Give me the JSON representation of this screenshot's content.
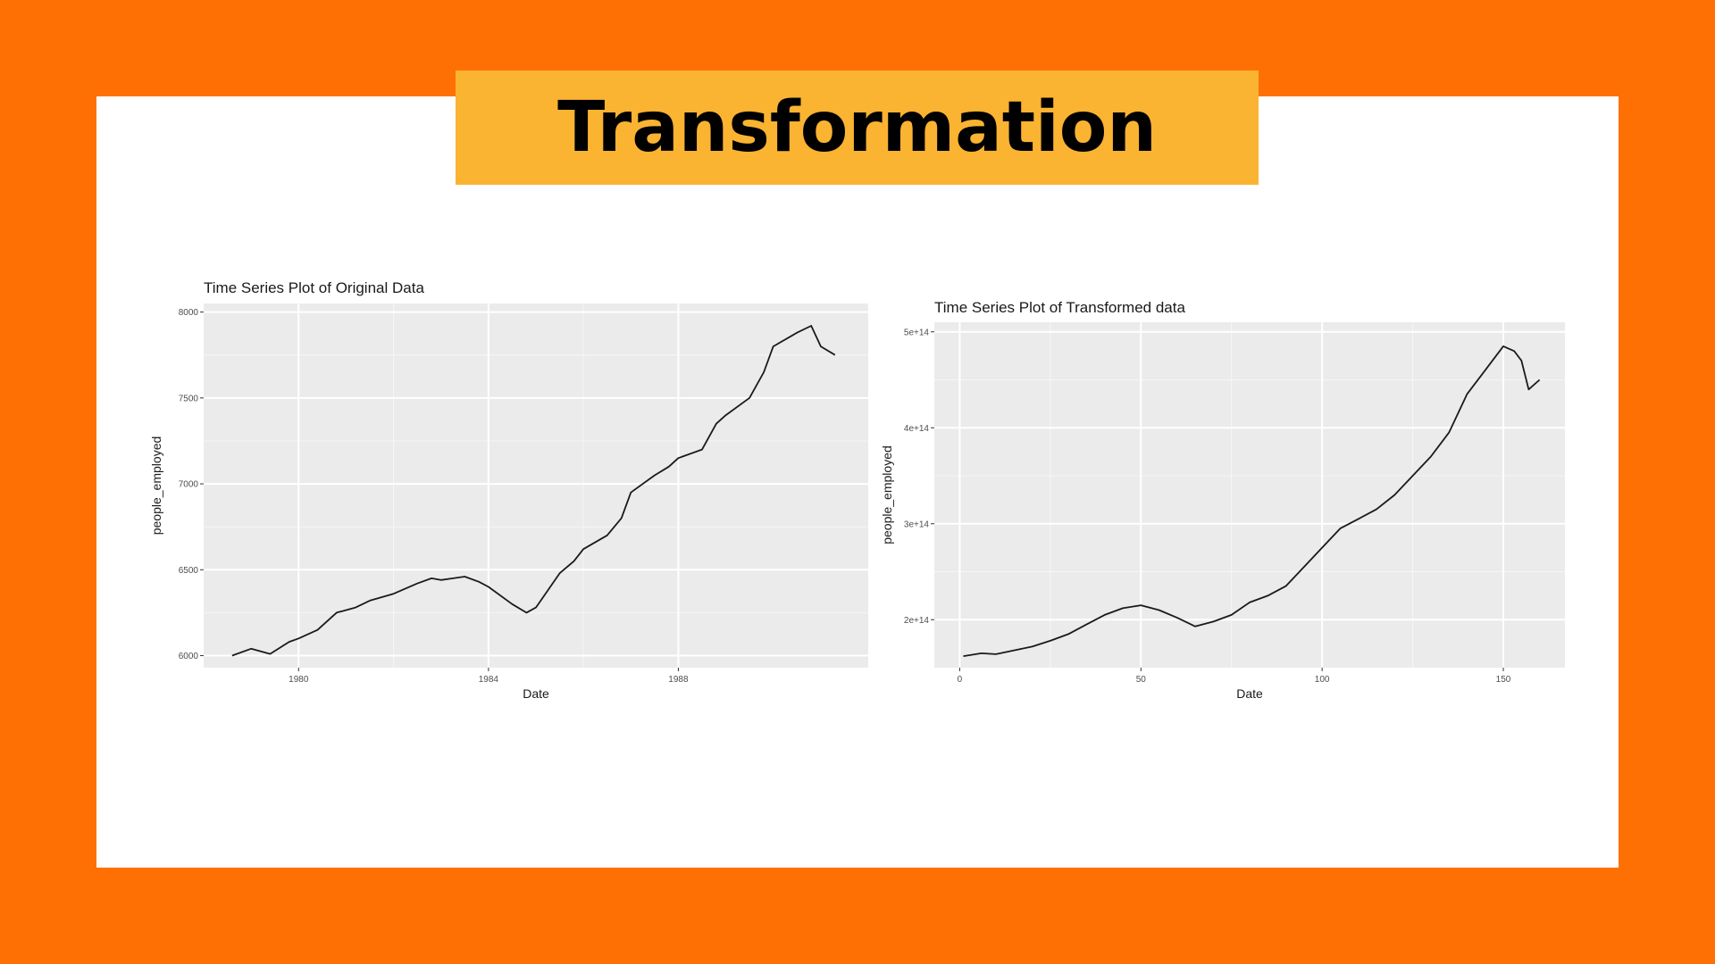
{
  "page": {
    "title": "Transformation",
    "colors": {
      "background": "#ff7004",
      "panel": "#ffffff",
      "banner": "#fbb332",
      "plot_bg": "#ebebeb",
      "line": "#1a1a1a"
    }
  },
  "chart_data": [
    {
      "type": "line",
      "title": "Time Series Plot of Original Data",
      "xlabel": "Date",
      "ylabel": "people_employed",
      "x_ticks": [
        "1980",
        "1984",
        "1988"
      ],
      "y_ticks": [
        "6000",
        "6500",
        "7000",
        "7500",
        "8000"
      ],
      "xlim": [
        1978,
        1992
      ],
      "ylim": [
        5930,
        8050
      ],
      "grid": true,
      "x": [
        1978.6,
        1979.0,
        1979.4,
        1979.8,
        1980.0,
        1980.4,
        1980.8,
        1981.2,
        1981.5,
        1982.0,
        1982.5,
        1982.8,
        1983.0,
        1983.5,
        1983.8,
        1984.0,
        1984.5,
        1984.8,
        1985.0,
        1985.5,
        1985.8,
        1986.0,
        1986.5,
        1986.8,
        1987.0,
        1987.5,
        1987.8,
        1988.0,
        1988.5,
        1988.8,
        1989.0,
        1989.5,
        1989.8,
        1990.0,
        1990.5,
        1990.8,
        1991.0,
        1991.3
      ],
      "y": [
        6000,
        6040,
        6010,
        6080,
        6100,
        6150,
        6250,
        6280,
        6320,
        6360,
        6420,
        6450,
        6440,
        6460,
        6430,
        6400,
        6300,
        6250,
        6280,
        6480,
        6550,
        6620,
        6700,
        6800,
        6950,
        7050,
        7100,
        7150,
        7200,
        7350,
        7400,
        7500,
        7650,
        7800,
        7880,
        7920,
        7800,
        7750
      ]
    },
    {
      "type": "line",
      "title": "Time Series Plot of Transformed data",
      "xlabel": "Date",
      "ylabel": "people_employed",
      "x_ticks": [
        "0",
        "50",
        "100",
        "150"
      ],
      "y_ticks": [
        "2e+14",
        "3e+14",
        "4e+14",
        "5e+14"
      ],
      "xlim": [
        -7,
        167
      ],
      "ylim": [
        150000000000000.0,
        510000000000000.0
      ],
      "grid": true,
      "x": [
        1,
        6,
        10,
        15,
        20,
        25,
        30,
        35,
        40,
        45,
        50,
        55,
        60,
        65,
        70,
        75,
        80,
        85,
        90,
        95,
        100,
        105,
        110,
        115,
        120,
        125,
        130,
        135,
        140,
        145,
        150,
        153,
        155,
        157,
        160
      ],
      "y": [
        162000000000000.0,
        165000000000000.0,
        164000000000000.0,
        168000000000000.0,
        172000000000000.0,
        178000000000000.0,
        185000000000000.0,
        195000000000000.0,
        205000000000000.0,
        212000000000000.0,
        215000000000000.0,
        210000000000000.0,
        202000000000000.0,
        193000000000000.0,
        198000000000000.0,
        205000000000000.0,
        218000000000000.0,
        225000000000000.0,
        235000000000000.0,
        255000000000000.0,
        275000000000000.0,
        295000000000000.0,
        305000000000000.0,
        315000000000000.0,
        330000000000000.0,
        350000000000000.0,
        370000000000000.0,
        395000000000000.0,
        435000000000000.0,
        460000000000000.0,
        485000000000000.0,
        480000000000000.0,
        470000000000000.0,
        440000000000000.0,
        450000000000000.0
      ]
    }
  ]
}
